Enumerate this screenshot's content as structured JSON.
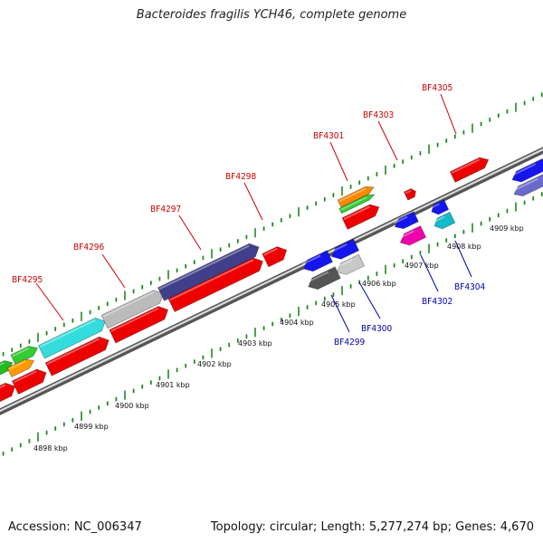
{
  "title": "Bacteroides fragilis YCH46, complete genome",
  "footer": {
    "accession": "Accession: NC_006347",
    "summary": "Topology: circular; Length: 5,277,274 bp; Genes: 4,670"
  },
  "colors": {
    "forward_label": "#cc0000",
    "reverse_label": "#0000aa",
    "backbone": "#777777",
    "ticks": "#228822"
  },
  "kbp_ticks": [
    "4898 kbp",
    "4899 kbp",
    "4900 kbp",
    "4901 kbp",
    "4902 kbp",
    "4903 kbp",
    "4904 kbp",
    "4905 kbp",
    "4906 kbp",
    "4907 kbp",
    "4908 kbp",
    "4909 kbp"
  ],
  "forward_gene_labels": [
    "BF4295",
    "BF4296",
    "BF4297",
    "BF4298",
    "BF4301",
    "BF4303",
    "BF4305"
  ],
  "reverse_gene_labels": [
    "BF4299",
    "BF4300",
    "BF4302",
    "BF4304"
  ]
}
